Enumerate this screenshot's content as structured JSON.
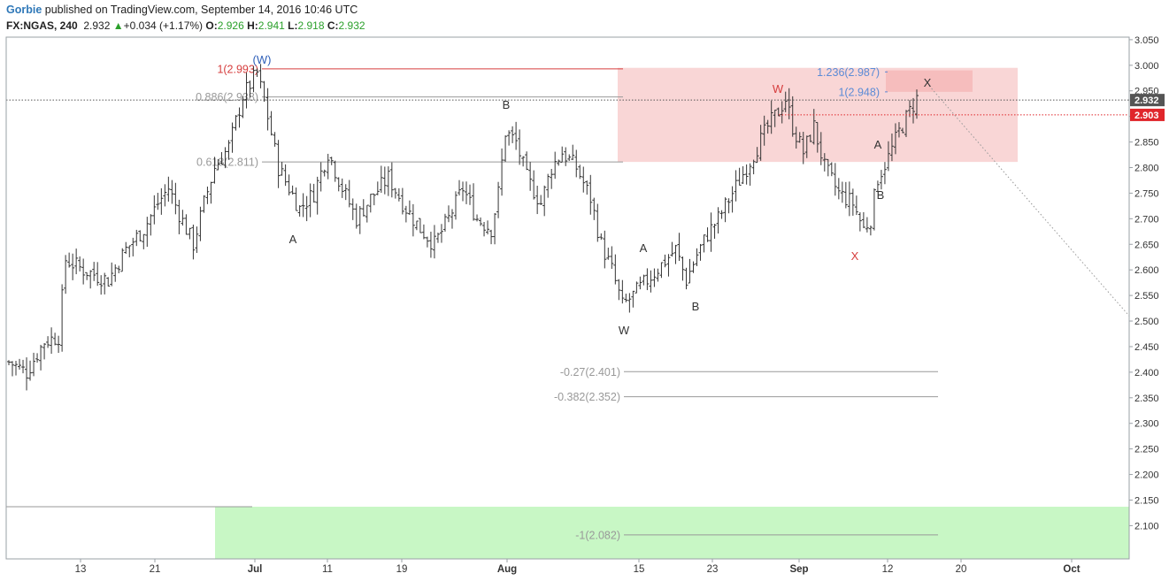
{
  "header": {
    "author": "Gorbie",
    "published_text": "published on TradingView.com, September 14, 2016 10:46 UTC",
    "symbol": "FX:NGAS, 240",
    "last": "2.932",
    "change": "+0.034 (+1.17%)",
    "open_label": "O:",
    "open": "2.926",
    "high_label": "H:",
    "high": "2.941",
    "low_label": "L:",
    "low": "2.918",
    "close_label": "C:",
    "close": "2.932",
    "up_color": "#2ba02b",
    "author_color": "#2f78b8"
  },
  "chart_data": {
    "type": "ohlc",
    "symbol": "FX:NGAS",
    "interval": "240",
    "ylim": [
      2.035,
      3.055
    ],
    "y_ticks": [
      "3.050",
      "3.000",
      "2.950",
      "2.900",
      "2.850",
      "2.800",
      "2.750",
      "2.700",
      "2.650",
      "2.600",
      "2.550",
      "2.500",
      "2.450",
      "2.400",
      "2.350",
      "2.300",
      "2.250",
      "2.200",
      "2.150",
      "2.100"
    ],
    "x_ticks": [
      "13",
      "21",
      "Jul",
      "11",
      "19",
      "Aug",
      "15",
      "23",
      "Sep",
      "12",
      "20",
      "Oct"
    ],
    "grid": false,
    "price_labels": [
      {
        "text": "2.932",
        "price": 2.932,
        "color": "#555555"
      },
      {
        "text": "2.903",
        "price": 2.903,
        "color": "#e0262b"
      }
    ],
    "price_path": [
      [
        0,
        2.42
      ],
      [
        5,
        2.4
      ],
      [
        10,
        2.46
      ],
      [
        14,
        2.47
      ],
      [
        16,
        2.62
      ],
      [
        21,
        2.6
      ],
      [
        28,
        2.58
      ],
      [
        33,
        2.64
      ],
      [
        38,
        2.68
      ],
      [
        42,
        2.73
      ],
      [
        45,
        2.76
      ],
      [
        48,
        2.71
      ],
      [
        52,
        2.65
      ],
      [
        55,
        2.73
      ],
      [
        58,
        2.8
      ],
      [
        62,
        2.84
      ],
      [
        66,
        2.94
      ],
      [
        70,
        2.985
      ],
      [
        73,
        2.9
      ],
      [
        76,
        2.8
      ],
      [
        79,
        2.76
      ],
      [
        82,
        2.72
      ],
      [
        86,
        2.75
      ],
      [
        90,
        2.83
      ],
      [
        94,
        2.76
      ],
      [
        98,
        2.7
      ],
      [
        102,
        2.74
      ],
      [
        107,
        2.78
      ],
      [
        112,
        2.72
      ],
      [
        116,
        2.68
      ],
      [
        120,
        2.65
      ],
      [
        124,
        2.7
      ],
      [
        128,
        2.76
      ],
      [
        132,
        2.7
      ],
      [
        136,
        2.68
      ],
      [
        138,
        2.75
      ],
      [
        140,
        2.87
      ],
      [
        143,
        2.85
      ],
      [
        146,
        2.78
      ],
      [
        150,
        2.73
      ],
      [
        153,
        2.8
      ],
      [
        156,
        2.83
      ],
      [
        160,
        2.8
      ],
      [
        164,
        2.74
      ],
      [
        167,
        2.65
      ],
      [
        170,
        2.6
      ],
      [
        173,
        2.53
      ],
      [
        176,
        2.55
      ],
      [
        180,
        2.58
      ],
      [
        184,
        2.61
      ],
      [
        188,
        2.64
      ],
      [
        191,
        2.58
      ],
      [
        194,
        2.63
      ],
      [
        197,
        2.67
      ],
      [
        200,
        2.7
      ],
      [
        204,
        2.75
      ],
      [
        208,
        2.8
      ],
      [
        211,
        2.84
      ],
      [
        214,
        2.88
      ],
      [
        217,
        2.91
      ],
      [
        219,
        2.935
      ],
      [
        221,
        2.88
      ],
      [
        224,
        2.83
      ],
      [
        227,
        2.88
      ],
      [
        230,
        2.8
      ],
      [
        234,
        2.75
      ],
      [
        238,
        2.73
      ],
      [
        241,
        2.68
      ],
      [
        243,
        2.7
      ],
      [
        245,
        2.78
      ],
      [
        248,
        2.82
      ],
      [
        251,
        2.87
      ],
      [
        254,
        2.91
      ],
      [
        256,
        2.935
      ]
    ],
    "price_path_x_span": [
      0,
      256
    ],
    "boxes": [
      {
        "name": "resistance-zone",
        "price_top": 2.995,
        "price_bottom": 2.811,
        "color": "#f9d6d6"
      },
      {
        "name": "x-target-zone",
        "price_top": 2.99,
        "price_bottom": 2.948,
        "color": "#f6b8b8"
      },
      {
        "name": "support-zone",
        "price_top": 2.137,
        "price_bottom": 2.035,
        "color": "#c8f7c5"
      }
    ],
    "fib_lines": [
      {
        "label": "1(2.993)",
        "price": 2.993,
        "color": "#d63d3d"
      },
      {
        "label": "0.886(2.938)",
        "price": 2.938,
        "color": "#999999"
      },
      {
        "label": "0.618(2.811)",
        "price": 2.811,
        "color": "#999999"
      },
      {
        "label": "1.236(2.987)",
        "price": 2.987,
        "color": "#5b8bd6"
      },
      {
        "label": "1(2.948)",
        "price": 2.948,
        "color": "#5b8bd6"
      },
      {
        "label": "-0.27(2.401)",
        "price": 2.401,
        "color": "#999999"
      },
      {
        "label": "-0.382(2.352)",
        "price": 2.352,
        "color": "#999999"
      },
      {
        "label": "-1(2.082)",
        "price": 2.082,
        "color": "#999999"
      }
    ],
    "wave_labels": [
      {
        "text": "(W)",
        "color": "#2f5fb8"
      },
      {
        "text": "A",
        "color": "#333333"
      },
      {
        "text": "B",
        "color": "#333333"
      },
      {
        "text": "W",
        "color": "#333333"
      },
      {
        "text": "A",
        "color": "#333333"
      },
      {
        "text": "B",
        "color": "#333333"
      },
      {
        "text": "W",
        "color": "#d63d3d"
      },
      {
        "text": "X",
        "color": "#d63d3d"
      },
      {
        "text": "A",
        "color": "#333333"
      },
      {
        "text": "B",
        "color": "#333333"
      },
      {
        "text": "X",
        "color": "#333333"
      }
    ]
  }
}
